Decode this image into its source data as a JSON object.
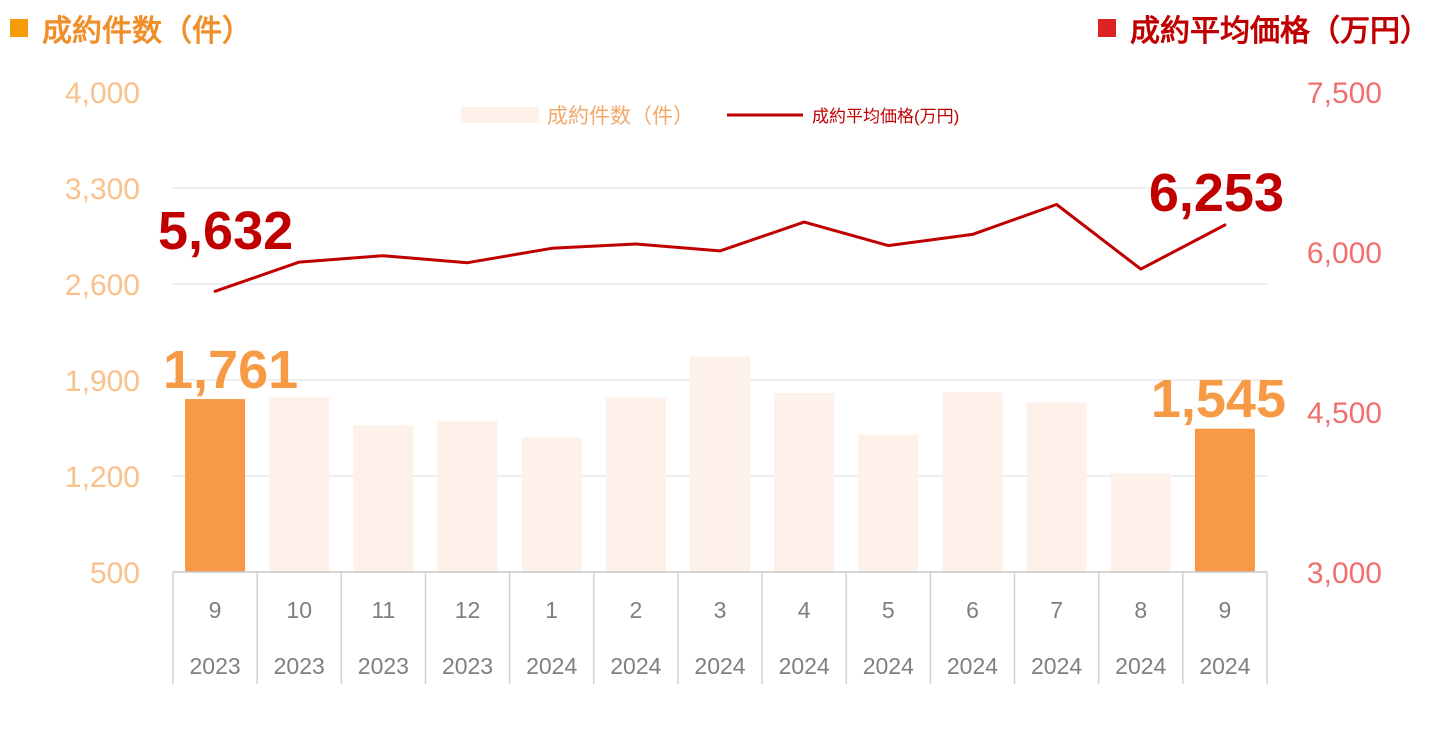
{
  "header": {
    "left_title": "成約件数（件）",
    "right_title": "成約平均価格（万円）"
  },
  "colors": {
    "bar_highlight": "#f79a45",
    "bar_normal": "#fdf1ea",
    "line": "#c00000",
    "left_axis": "#f9c18b",
    "right_axis": "#f06f6f",
    "left_header": "#f08f2a",
    "right_header": "#c00000"
  },
  "chart_data": {
    "type": "bar+line",
    "categories": [
      {
        "month": "9",
        "year": "2023"
      },
      {
        "month": "10",
        "year": "2023"
      },
      {
        "month": "11",
        "year": "2023"
      },
      {
        "month": "12",
        "year": "2023"
      },
      {
        "month": "1",
        "year": "2024"
      },
      {
        "month": "2",
        "year": "2024"
      },
      {
        "month": "3",
        "year": "2024"
      },
      {
        "month": "4",
        "year": "2024"
      },
      {
        "month": "5",
        "year": "2024"
      },
      {
        "month": "6",
        "year": "2024"
      },
      {
        "month": "7",
        "year": "2024"
      },
      {
        "month": "8",
        "year": "2024"
      },
      {
        "month": "9",
        "year": "2024"
      }
    ],
    "series": [
      {
        "name": "成約件数（件）",
        "type": "bar",
        "axis": "left",
        "values": [
          1761,
          1775,
          1570,
          1600,
          1480,
          1770,
          2070,
          1805,
          1500,
          1810,
          1735,
          1220,
          1545
        ],
        "highlight": [
          true,
          false,
          false,
          false,
          false,
          false,
          false,
          false,
          false,
          false,
          false,
          false,
          true
        ]
      },
      {
        "name": "成約平均価格(万円)",
        "type": "line",
        "axis": "right",
        "values": [
          5632,
          5905,
          5965,
          5900,
          6035,
          6075,
          6010,
          6280,
          6060,
          6165,
          6445,
          5840,
          6253
        ]
      }
    ],
    "y_left": {
      "min": 500,
      "max": 4000,
      "ticks": [
        "500",
        "1,200",
        "1,900",
        "2,600",
        "3,300",
        "4,000"
      ]
    },
    "y_right": {
      "min": 3000,
      "max": 7500,
      "ticks": [
        "3,000",
        "4,500",
        "6,000",
        "7,500"
      ]
    },
    "annotations": {
      "line_first": "5,632",
      "line_last": "6,253",
      "bar_first": "1,761",
      "bar_last": "1,545"
    },
    "legend": {
      "position": "top-center",
      "bar_label": "成約件数（件）",
      "line_label": "成約平均価格(万円)"
    },
    "grid": true
  }
}
